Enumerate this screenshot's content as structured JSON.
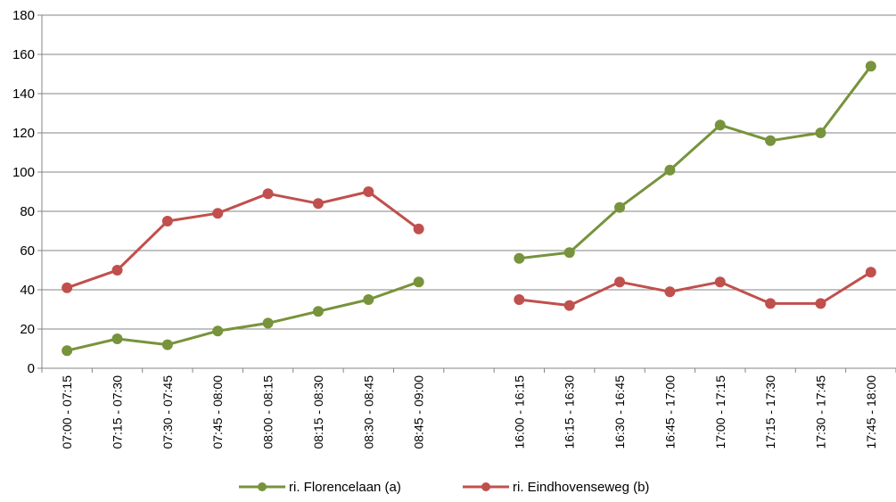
{
  "chart_data": {
    "type": "line",
    "categories": [
      "07:00 - 07:15",
      "07:15 - 07:30",
      "07:30 - 07:45",
      "07:45 - 08:00",
      "08:00 - 08:15",
      "08:15 - 08:30",
      "08:30 - 08:45",
      "08:45 - 09:00",
      "",
      "16:00 - 16:15",
      "16:15 - 16:30",
      "16:30 - 16:45",
      "16:45 - 17:00",
      "17:00 - 17:15",
      "17:15 - 17:30",
      "17:30 - 17:45",
      "17:45 - 18:00"
    ],
    "series": [
      {
        "name": "ri. Florencelaan (a)",
        "color": "#77933c",
        "values": [
          9,
          15,
          12,
          19,
          23,
          29,
          35,
          44,
          null,
          56,
          59,
          82,
          101,
          124,
          116,
          120,
          154
        ]
      },
      {
        "name": "ri. Eindhovenseweg (b)",
        "color": "#c0504d",
        "values": [
          41,
          50,
          75,
          79,
          89,
          84,
          90,
          71,
          null,
          35,
          32,
          44,
          39,
          44,
          33,
          33,
          49
        ]
      }
    ],
    "yticks": [
      "0",
      "20",
      "40",
      "60",
      "80",
      "100",
      "120",
      "140",
      "160",
      "180"
    ],
    "ylim": [
      0,
      180
    ],
    "grid": true,
    "legend_position": "bottom"
  }
}
